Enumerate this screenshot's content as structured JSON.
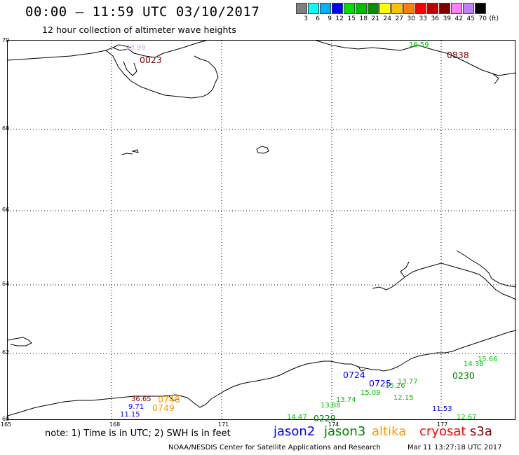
{
  "header": {
    "title": "00:00 – 11:59 UTC 03/10/2017",
    "subtitle": "12 hour collection of altimeter wave heights"
  },
  "legend": {
    "colors": [
      "#808080",
      "#00ffff",
      "#00b0ff",
      "#0000ff",
      "#00e000",
      "#00c000",
      "#009000",
      "#ffff00",
      "#ffc000",
      "#ff8000",
      "#ff0000",
      "#c00000",
      "#800000",
      "#ff80ff",
      "#c080ff",
      "#000000"
    ],
    "labels": [
      "3",
      "6",
      "9",
      "12",
      "15",
      "18",
      "21",
      "24",
      "27",
      "30",
      "33",
      "36",
      "39",
      "42",
      "45",
      "70",
      "(ft)"
    ]
  },
  "axes": {
    "lat_labels": [
      "70",
      "68",
      "66",
      "64",
      "62",
      "60"
    ],
    "lon_labels": [
      "165",
      "168",
      "171",
      "174",
      "177"
    ]
  },
  "observations": [
    {
      "text": "93.99",
      "color": "#d8a0ff"
    },
    {
      "text": "0023",
      "color": "#800000"
    },
    {
      "text": "16.59",
      "color": "#00c000"
    },
    {
      "text": "0838",
      "color": "#800000"
    },
    {
      "text": "36.65",
      "color": "#800000"
    },
    {
      "text": "0748",
      "color": "#ff9900"
    },
    {
      "text": "9.71",
      "color": "#0000ff"
    },
    {
      "text": "0749",
      "color": "#ff9900"
    },
    {
      "text": "11.15",
      "color": "#0000ff"
    },
    {
      "text": "0724",
      "color": "#0000ff"
    },
    {
      "text": "0725",
      "color": "#0000ff"
    },
    {
      "text": "0229",
      "color": "#008000"
    },
    {
      "text": "0230",
      "color": "#008000"
    },
    {
      "text": "11.53",
      "color": "#0000ff"
    },
    {
      "text": "15.09",
      "color": "#00c000"
    },
    {
      "text": "15.26",
      "color": "#00c000"
    },
    {
      "text": "15.66",
      "color": "#00c000"
    },
    {
      "text": "14.38",
      "color": "#00c000"
    },
    {
      "text": "13.77",
      "color": "#00c000"
    },
    {
      "text": "12.15",
      "color": "#00c000"
    },
    {
      "text": "12.67",
      "color": "#00c000"
    },
    {
      "text": "14.47",
      "color": "#00c000"
    },
    {
      "text": "13.74",
      "color": "#00c000"
    },
    {
      "text": "13.88",
      "color": "#00c000"
    }
  ],
  "footer": {
    "note": "note: 1) Time is in UTC; 2) SWH is in feet",
    "satellites": [
      {
        "name": "jason2",
        "color": "#0000ff"
      },
      {
        "name": "jason3",
        "color": "#008000"
      },
      {
        "name": "altika",
        "color": "#ff9900"
      },
      {
        "name": "cryosat",
        "color": "#ff0000"
      },
      {
        "name": "s3a",
        "color": "#800000"
      }
    ],
    "credit": "NOAA/NESDIS Center for Satellite Applications and Research",
    "timestamp": "Mar 11 13:27:18 UTC 2017"
  }
}
